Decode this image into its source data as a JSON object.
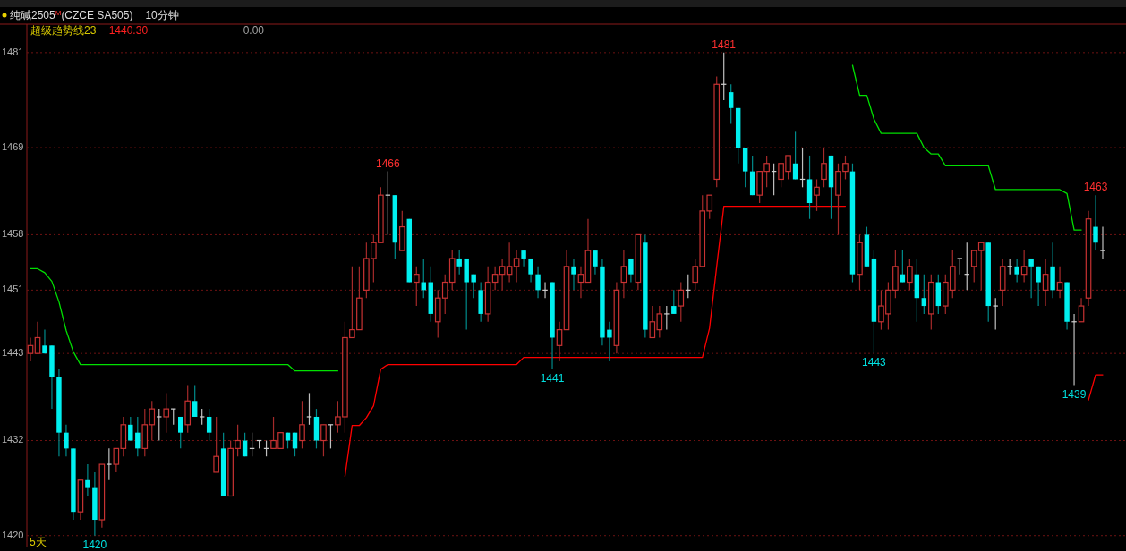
{
  "chart_data": {
    "type": "candlestick",
    "title": "纯碱2505$^{M}$(CZCE SA505)",
    "subtitle": "10分钟",
    "categories": [
      null,
      null,
      null,
      null,
      null,
      null,
      null,
      null,
      null,
      null,
      null,
      null,
      null,
      null,
      null,
      null,
      null,
      null,
      null,
      null,
      null,
      null,
      null,
      null,
      null,
      null,
      null,
      null,
      null,
      null,
      null,
      null,
      null,
      null,
      null,
      null,
      null,
      null,
      null,
      null,
      null,
      null,
      null,
      null,
      null,
      null,
      null,
      null,
      null,
      null,
      null,
      null,
      null,
      null,
      null,
      null,
      null,
      null,
      null,
      null,
      null,
      null,
      null,
      null,
      null,
      null,
      null,
      null,
      null,
      null,
      null,
      null,
      null,
      null,
      null,
      null,
      null,
      null,
      null,
      null,
      null,
      null,
      null,
      null,
      null,
      null,
      null,
      null,
      null,
      null,
      null,
      null,
      null,
      null,
      null,
      null,
      null,
      null,
      null,
      null,
      null,
      null,
      null,
      null,
      null,
      null,
      null,
      null,
      null,
      null,
      null,
      null,
      null,
      null,
      null,
      null,
      null,
      null,
      null,
      null,
      null,
      null,
      null,
      null,
      null,
      null,
      null,
      null,
      null,
      null,
      null,
      null,
      null,
      null,
      null,
      null,
      null,
      null,
      null,
      null,
      null,
      null,
      null,
      null,
      null,
      null,
      null,
      null,
      null,
      null,
      null
    ],
    "ohlc": [
      [
        1443,
        1445,
        1442,
        1444
      ],
      [
        1443,
        1447,
        1443,
        1445
      ],
      [
        1444,
        1446,
        1443,
        1443
      ],
      [
        1444,
        1444,
        1436,
        1440
      ],
      [
        1440,
        1441,
        1430,
        1433
      ],
      [
        1433,
        1434,
        1430,
        1431
      ],
      [
        1431,
        1431,
        1422,
        1423
      ],
      [
        1423,
        1427,
        1422,
        1427
      ],
      [
        1427,
        1429,
        1425,
        1426
      ],
      [
        1426,
        1428,
        1420,
        1422
      ],
      [
        1422,
        1429,
        1421,
        1429
      ],
      [
        1429,
        1431,
        1427,
        1429
      ],
      [
        1429,
        1431,
        1428,
        1431
      ],
      [
        1431,
        1435,
        1430,
        1434
      ],
      [
        1434,
        1435,
        1432,
        1432
      ],
      [
        1433,
        1435,
        1430,
        1431
      ],
      [
        1431,
        1436,
        1430,
        1434
      ],
      [
        1434,
        1437,
        1432,
        1436
      ],
      [
        1435,
        1436,
        1432,
        1435
      ],
      [
        1435,
        1438,
        1433,
        1436
      ],
      [
        1436,
        1436,
        1434,
        1436
      ],
      [
        1435,
        1435,
        1431,
        1433
      ],
      [
        1434,
        1439,
        1433,
        1437
      ],
      [
        1437,
        1439,
        1435,
        1435
      ],
      [
        1435,
        1436,
        1434,
        1435
      ],
      [
        1435,
        1436,
        1432,
        1433
      ],
      [
        1428,
        1435,
        1428,
        1430
      ],
      [
        1431,
        1433,
        1425,
        1425
      ],
      [
        1425,
        1432,
        1425,
        1431
      ],
      [
        1431,
        1434,
        1430,
        1432
      ],
      [
        1432,
        1433,
        1430,
        1430
      ],
      [
        1431,
        1433,
        1430,
        1431
      ],
      [
        1432,
        1432,
        1431,
        1432
      ],
      [
        1431,
        1432,
        1430,
        1431
      ],
      [
        1431,
        1435,
        1431,
        1432
      ],
      [
        1431,
        1433,
        1431,
        1433
      ],
      [
        1433,
        1433,
        1431,
        1432
      ],
      [
        1433,
        1433,
        1430,
        1431
      ],
      [
        1432,
        1437,
        1431,
        1434
      ],
      [
        1435,
        1438,
        1434,
        1435
      ],
      [
        1435,
        1436,
        1431,
        1432
      ],
      [
        1432,
        1434,
        1430,
        1434
      ],
      [
        1434,
        1434,
        1431,
        1434
      ],
      [
        1434,
        1437,
        1433,
        1435
      ],
      [
        1435,
        1447,
        1433,
        1445
      ],
      [
        1445,
        1454,
        1445,
        1446
      ],
      [
        1446,
        1454,
        1446,
        1450
      ],
      [
        1451,
        1457,
        1450,
        1455
      ],
      [
        1455,
        1458,
        1452,
        1457
      ],
      [
        1457,
        1464,
        1457,
        1463
      ],
      [
        1463,
        1466,
        1458,
        1463
      ],
      [
        1463,
        1463,
        1455,
        1457
      ],
      [
        1456,
        1461,
        1456,
        1459
      ],
      [
        1460,
        1460,
        1452,
        1452
      ],
      [
        1452,
        1454,
        1449,
        1453
      ],
      [
        1452,
        1455,
        1450,
        1451
      ],
      [
        1452,
        1454,
        1447,
        1448
      ],
      [
        1447,
        1451,
        1445,
        1450
      ],
      [
        1450,
        1453,
        1448,
        1452
      ],
      [
        1452,
        1456,
        1451,
        1455
      ],
      [
        1455,
        1456,
        1453,
        1454
      ],
      [
        1455,
        1455,
        1446,
        1452
      ],
      [
        1453,
        1453,
        1450,
        1452
      ],
      [
        1451,
        1452,
        1447,
        1448
      ],
      [
        1448,
        1454,
        1447,
        1452
      ],
      [
        1452,
        1454,
        1451,
        1453
      ],
      [
        1453,
        1455,
        1451,
        1454
      ],
      [
        1453,
        1457,
        1452,
        1454
      ],
      [
        1454,
        1456,
        1452,
        1455
      ],
      [
        1456,
        1456,
        1454,
        1455
      ],
      [
        1455,
        1455,
        1452,
        1453
      ],
      [
        1453,
        1454,
        1450,
        1451
      ],
      [
        1451,
        1452,
        1450,
        1451
      ],
      [
        1452,
        1452,
        1441,
        1445
      ],
      [
        1444,
        1447,
        1442,
        1446
      ],
      [
        1446,
        1456,
        1446,
        1454
      ],
      [
        1454,
        1455,
        1451,
        1453
      ],
      [
        1452,
        1454,
        1450,
        1453
      ],
      [
        1452,
        1460,
        1452,
        1456
      ],
      [
        1456,
        1456,
        1453,
        1454
      ],
      [
        1454,
        1455,
        1444,
        1445
      ],
      [
        1446,
        1447,
        1442,
        1445
      ],
      [
        1444,
        1452,
        1443,
        1451
      ],
      [
        1452,
        1456,
        1450,
        1454
      ],
      [
        1455,
        1455,
        1452,
        1453
      ],
      [
        1452,
        1458,
        1451,
        1458
      ],
      [
        1457,
        1458,
        1445,
        1446
      ],
      [
        1445,
        1449,
        1445,
        1447
      ],
      [
        1446,
        1449,
        1445,
        1448
      ],
      [
        1448,
        1449,
        1446,
        1448
      ],
      [
        1449,
        1451,
        1448,
        1448
      ],
      [
        1449,
        1452,
        1447,
        1451
      ],
      [
        1451,
        1453,
        1450,
        1451
      ],
      [
        1452,
        1455,
        1451,
        1454
      ],
      [
        1454,
        1463,
        1454,
        1461
      ],
      [
        1461,
        1463,
        1460,
        1463
      ],
      [
        1465,
        1478,
        1464,
        1477
      ],
      [
        1477,
        1481,
        1475,
        1477
      ],
      [
        1476,
        1477,
        1472,
        1474
      ],
      [
        1474,
        1474,
        1467,
        1469
      ],
      [
        1469,
        1469,
        1464,
        1466
      ],
      [
        1466,
        1468,
        1463,
        1463
      ],
      [
        1463,
        1466,
        1462,
        1466
      ],
      [
        1466,
        1468,
        1464,
        1467
      ],
      [
        1466,
        1467,
        1463,
        1466
      ],
      [
        1465,
        1467,
        1464,
        1467
      ],
      [
        1466,
        1468,
        1465,
        1468
      ],
      [
        1467,
        1471,
        1465,
        1465
      ],
      [
        1465,
        1469,
        1464,
        1465
      ],
      [
        1465,
        1468,
        1460,
        1462
      ],
      [
        1463,
        1465,
        1461,
        1464
      ],
      [
        1465,
        1469,
        1464,
        1467
      ],
      [
        1468,
        1468,
        1460,
        1464
      ],
      [
        1463,
        1467,
        1458,
        1466
      ],
      [
        1466,
        1468,
        1465,
        1467
      ],
      [
        1466,
        1467,
        1452,
        1453
      ],
      [
        1453,
        1458,
        1451,
        1457
      ],
      [
        1458,
        1459,
        1454,
        1454
      ],
      [
        1455,
        1456,
        1443,
        1447
      ],
      [
        1447,
        1451,
        1446,
        1449
      ],
      [
        1448,
        1452,
        1446,
        1451
      ],
      [
        1451,
        1456,
        1450,
        1454
      ],
      [
        1453,
        1456,
        1452,
        1452
      ],
      [
        1452,
        1455,
        1451,
        1454
      ],
      [
        1453,
        1455,
        1447,
        1450
      ],
      [
        1450,
        1453,
        1448,
        1449
      ],
      [
        1448,
        1453,
        1446,
        1452
      ],
      [
        1452,
        1453,
        1448,
        1449
      ],
      [
        1449,
        1453,
        1448,
        1452
      ],
      [
        1451,
        1456,
        1450,
        1454
      ],
      [
        1455,
        1455,
        1453,
        1455
      ],
      [
        1453,
        1457,
        1451,
        1453
      ],
      [
        1454,
        1456,
        1452,
        1456
      ],
      [
        1456,
        1457,
        1451,
        1457
      ],
      [
        1457,
        1457,
        1447,
        1449
      ],
      [
        1449,
        1450,
        1446,
        1449
      ],
      [
        1451,
        1455,
        1449,
        1454
      ],
      [
        1454,
        1455,
        1453,
        1454
      ],
      [
        1454,
        1455,
        1452,
        1453
      ],
      [
        1453,
        1456,
        1452,
        1454
      ],
      [
        1455,
        1455,
        1450,
        1454
      ],
      [
        1454,
        1454,
        1449,
        1452
      ],
      [
        1451,
        1455,
        1449,
        1453
      ],
      [
        1454,
        1457,
        1450,
        1451
      ],
      [
        1451,
        1454,
        1450,
        1452
      ],
      [
        1452,
        1452,
        1446,
        1447
      ],
      [
        1447,
        1448,
        1439,
        1447
      ],
      [
        1447,
        1450,
        1447,
        1449
      ],
      [
        1450,
        1461,
        1449,
        1460
      ],
      [
        1459,
        1463,
        1456,
        1457
      ],
      [
        1456,
        1459,
        1455,
        1456
      ]
    ],
    "series": [
      {
        "type": "line",
        "color": "#00e000",
        "values": [
          1453.7,
          1453.7,
          1453.2,
          1452.1,
          1449.5,
          1445.9,
          1443.2,
          1441.6,
          1441.6,
          1441.6,
          1441.6,
          1441.6,
          1441.6,
          1441.6,
          1441.6,
          1441.6,
          1441.6,
          1441.6,
          1441.6,
          1441.6,
          1441.6,
          1441.6,
          1441.6,
          1441.6,
          1441.6,
          1441.6,
          1441.6,
          1441.6,
          1441.6,
          1441.6,
          1441.6,
          1441.6,
          1441.6,
          1441.6,
          1441.6,
          1441.6,
          1441.6,
          1440.8,
          1440.8,
          1440.8,
          1440.8,
          1440.8,
          1440.8,
          1440.8,
          null,
          null,
          null,
          null,
          null,
          null,
          null,
          null,
          null,
          null,
          null,
          null,
          null,
          null,
          null,
          null,
          null,
          null,
          null,
          null,
          null,
          null,
          null,
          null,
          null,
          null,
          null,
          null,
          null,
          null,
          null,
          null,
          null,
          null,
          null,
          null,
          null,
          null,
          null,
          null,
          null,
          null,
          null,
          null,
          null,
          null,
          null,
          null,
          null,
          null,
          null,
          null,
          null,
          null,
          null,
          null,
          null,
          null,
          null,
          null,
          null,
          null,
          null,
          null,
          null,
          null,
          null,
          null,
          null,
          null,
          null,
          1479.4,
          1475.6,
          1475.6,
          1472.6,
          1470.8,
          1470.8,
          1470.8,
          1470.8,
          1470.8,
          1470.8,
          1469.0,
          1468.2,
          1468.2,
          1466.7,
          1466.7,
          1466.7,
          1466.7,
          1466.7,
          1466.7,
          1466.7,
          1463.7,
          1463.7,
          1463.7,
          1463.7,
          1463.7,
          1463.7,
          1463.7,
          1463.7,
          1463.7,
          1463.7,
          1463.2,
          1458.6,
          1458.6,
          null,
          null,
          null
        ]
      },
      {
        "type": "line",
        "color": "#ff0000",
        "values": [
          null,
          null,
          null,
          null,
          null,
          null,
          null,
          null,
          null,
          null,
          null,
          null,
          null,
          null,
          null,
          null,
          null,
          null,
          null,
          null,
          null,
          null,
          null,
          null,
          null,
          null,
          null,
          null,
          null,
          null,
          null,
          null,
          null,
          null,
          null,
          null,
          null,
          null,
          null,
          null,
          null,
          null,
          null,
          null,
          1427.5,
          1433.9,
          1433.9,
          1434.9,
          1436.4,
          1441.0,
          1441.6,
          1441.6,
          1441.6,
          1441.6,
          1441.6,
          1441.6,
          1441.6,
          1441.6,
          1441.6,
          1441.6,
          1441.6,
          1441.6,
          1441.6,
          1441.6,
          1441.6,
          1441.6,
          1441.6,
          1441.6,
          1441.6,
          1442.5,
          1442.5,
          1442.5,
          1442.5,
          1442.5,
          1442.5,
          1442.5,
          1442.5,
          1442.5,
          1442.5,
          1442.5,
          1442.5,
          1442.5,
          1442.5,
          1442.5,
          1442.5,
          1442.5,
          1442.5,
          1442.5,
          1442.5,
          1442.5,
          1442.5,
          1442.5,
          1442.5,
          1442.5,
          1442.5,
          1446.2,
          1454.0,
          1461.6,
          1461.6,
          1461.6,
          1461.6,
          1461.6,
          1461.6,
          1461.6,
          1461.6,
          1461.6,
          1461.6,
          1461.6,
          1461.6,
          1461.6,
          1461.6,
          1461.6,
          1461.6,
          1461.6,
          1461.6,
          null,
          null,
          null,
          null,
          null,
          null,
          null,
          null,
          null,
          null,
          null,
          null,
          null,
          null,
          null,
          null,
          null,
          null,
          null,
          null,
          null,
          null,
          null,
          null,
          null,
          null,
          null,
          null,
          null,
          null,
          null,
          null,
          null,
          1437.1,
          1440.3,
          1440.3
        ]
      }
    ],
    "ylim": [
      1418.5,
      1484.6
    ],
    "yticks": [
      1481,
      1469,
      1458,
      1451,
      1443,
      1432,
      1420
    ],
    "grid": "y",
    "tick_labels": "y",
    "annotations": [
      "超级趋势线23",
      "1440.30",
      "0.00",
      "5天",
      "1466",
      "1481",
      "1463",
      "1420",
      "1441",
      "1443",
      "1439"
    ]
  }
}
